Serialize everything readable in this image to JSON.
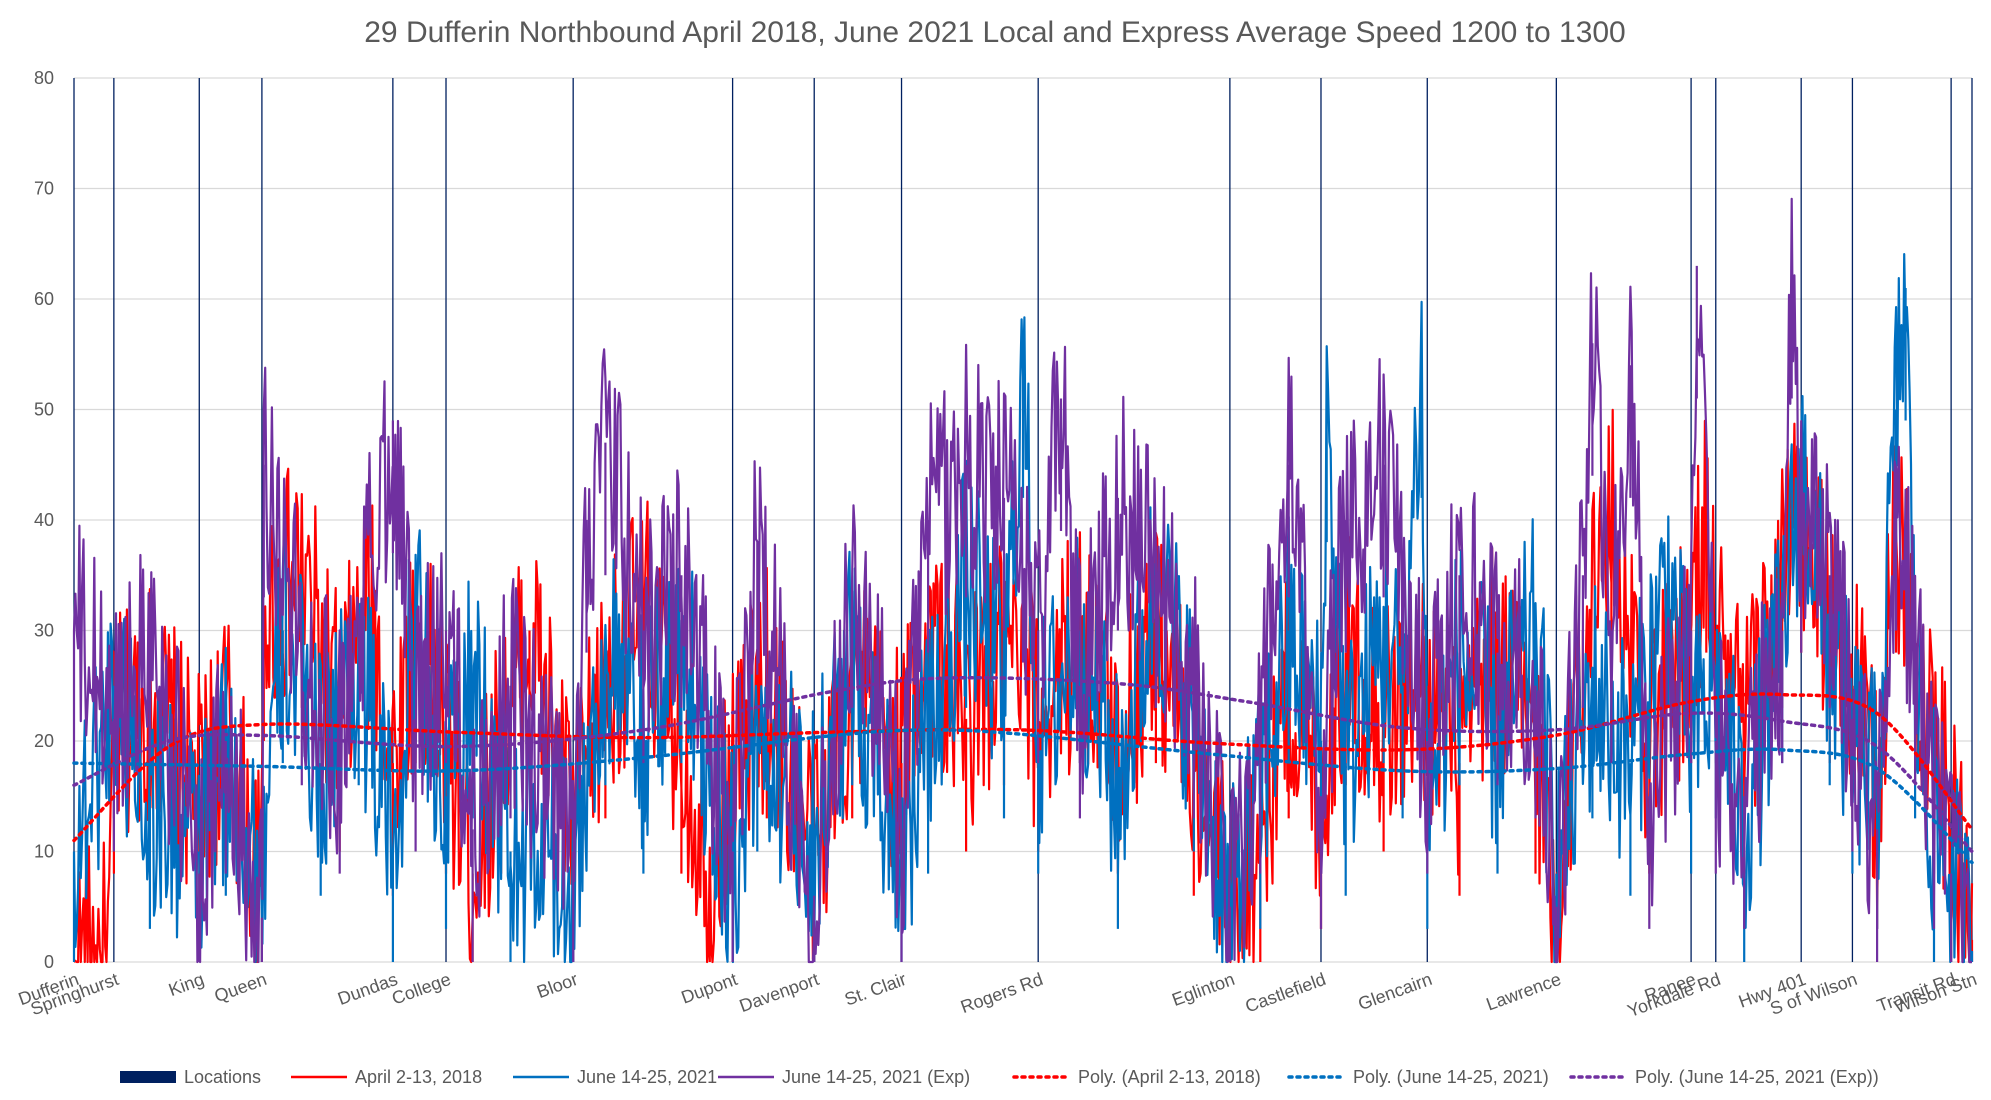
{
  "chart_data": {
    "type": "line",
    "title": "29 Dufferin Northbound April 2018, June 2021 Local and Express Average Speed 1200 to 1300",
    "xlabel": "",
    "ylabel": "",
    "ylim": [
      0,
      80
    ],
    "yticks": [
      "0",
      "10",
      "20",
      "30",
      "40",
      "50",
      "60",
      "70",
      "80"
    ],
    "grid": true,
    "legend_position": "bottom",
    "locations": [
      {
        "name": "Dufferin",
        "pos": 0.0
      },
      {
        "name": "Springhurst",
        "pos": 0.021
      },
      {
        "name": "King",
        "pos": 0.066
      },
      {
        "name": "Queen",
        "pos": 0.099
      },
      {
        "name": "Dundas",
        "pos": 0.168
      },
      {
        "name": "College",
        "pos": 0.196
      },
      {
        "name": "Bloor",
        "pos": 0.263
      },
      {
        "name": "Dupont",
        "pos": 0.347
      },
      {
        "name": "Davenport",
        "pos": 0.39
      },
      {
        "name": "St. Clair",
        "pos": 0.436
      },
      {
        "name": "Rogers Rd",
        "pos": 0.508
      },
      {
        "name": "Eglinton",
        "pos": 0.609
      },
      {
        "name": "Castlefield",
        "pos": 0.657
      },
      {
        "name": "Glencairn",
        "pos": 0.713
      },
      {
        "name": "Lawrence",
        "pos": 0.781
      },
      {
        "name": "Ranee",
        "pos": 0.852
      },
      {
        "name": "Yorkdale Rd",
        "pos": 0.865
      },
      {
        "name": "Hwy 401",
        "pos": 0.91
      },
      {
        "name": "S of Wilson",
        "pos": 0.937
      },
      {
        "name": "Transit Rd",
        "pos": 0.989
      },
      {
        "name": "Wilson Stn",
        "pos": 1.0
      }
    ],
    "series": [
      {
        "name": "April 2-13, 2018",
        "color": "#ff0000",
        "points": [
          [
            0,
            0
          ],
          [
            0.018,
            0
          ],
          [
            0.021,
            20
          ],
          [
            0.04,
            24
          ],
          [
            0.066,
            15
          ],
          [
            0.08,
            22
          ],
          [
            0.099,
            5
          ],
          [
            0.1,
            32
          ],
          [
            0.12,
            35
          ],
          [
            0.14,
            22
          ],
          [
            0.155,
            33
          ],
          [
            0.168,
            18
          ],
          [
            0.18,
            30
          ],
          [
            0.196,
            20
          ],
          [
            0.21,
            8
          ],
          [
            0.225,
            20
          ],
          [
            0.24,
            30
          ],
          [
            0.263,
            12
          ],
          [
            0.28,
            25
          ],
          [
            0.3,
            32
          ],
          [
            0.32,
            20
          ],
          [
            0.335,
            8
          ],
          [
            0.347,
            18
          ],
          [
            0.365,
            25
          ],
          [
            0.39,
            10
          ],
          [
            0.41,
            25
          ],
          [
            0.436,
            18
          ],
          [
            0.45,
            30
          ],
          [
            0.47,
            22
          ],
          [
            0.49,
            28
          ],
          [
            0.508,
            22
          ],
          [
            0.53,
            30
          ],
          [
            0.55,
            20
          ],
          [
            0.57,
            30
          ],
          [
            0.59,
            18
          ],
          [
            0.609,
            5
          ],
          [
            0.625,
            12
          ],
          [
            0.64,
            25
          ],
          [
            0.657,
            15
          ],
          [
            0.67,
            28
          ],
          [
            0.69,
            22
          ],
          [
            0.713,
            25
          ],
          [
            0.73,
            18
          ],
          [
            0.75,
            28
          ],
          [
            0.77,
            20
          ],
          [
            0.781,
            5
          ],
          [
            0.795,
            30
          ],
          [
            0.81,
            40
          ],
          [
            0.83,
            20
          ],
          [
            0.852,
            30
          ],
          [
            0.86,
            40
          ],
          [
            0.865,
            30
          ],
          [
            0.88,
            20
          ],
          [
            0.9,
            35
          ],
          [
            0.91,
            40
          ],
          [
            0.925,
            30
          ],
          [
            0.937,
            25
          ],
          [
            0.95,
            15
          ],
          [
            0.96,
            40
          ],
          [
            0.97,
            30
          ],
          [
            0.98,
            20
          ],
          [
            0.989,
            12
          ],
          [
            1.0,
            2
          ]
        ]
      },
      {
        "name": "June 14-25, 2021",
        "color": "#0070c0",
        "points": [
          [
            0,
            10
          ],
          [
            0.021,
            25
          ],
          [
            0.04,
            15
          ],
          [
            0.066,
            10
          ],
          [
            0.08,
            18
          ],
          [
            0.099,
            8
          ],
          [
            0.11,
            30
          ],
          [
            0.13,
            18
          ],
          [
            0.15,
            28
          ],
          [
            0.168,
            10
          ],
          [
            0.18,
            32
          ],
          [
            0.196,
            15
          ],
          [
            0.21,
            25
          ],
          [
            0.23,
            10
          ],
          [
            0.263,
            8
          ],
          [
            0.28,
            28
          ],
          [
            0.3,
            20
          ],
          [
            0.32,
            30
          ],
          [
            0.347,
            8
          ],
          [
            0.36,
            22
          ],
          [
            0.39,
            12
          ],
          [
            0.41,
            28
          ],
          [
            0.436,
            10
          ],
          [
            0.45,
            20
          ],
          [
            0.47,
            35
          ],
          [
            0.49,
            25
          ],
          [
            0.5,
            54
          ],
          [
            0.508,
            20
          ],
          [
            0.53,
            30
          ],
          [
            0.55,
            15
          ],
          [
            0.57,
            35
          ],
          [
            0.59,
            22
          ],
          [
            0.609,
            4
          ],
          [
            0.625,
            15
          ],
          [
            0.64,
            30
          ],
          [
            0.657,
            20
          ],
          [
            0.66,
            50
          ],
          [
            0.67,
            18
          ],
          [
            0.69,
            30
          ],
          [
            0.7,
            25
          ],
          [
            0.71,
            54
          ],
          [
            0.713,
            15
          ],
          [
            0.73,
            28
          ],
          [
            0.75,
            20
          ],
          [
            0.77,
            30
          ],
          [
            0.781,
            8
          ],
          [
            0.8,
            25
          ],
          [
            0.82,
            18
          ],
          [
            0.84,
            35
          ],
          [
            0.852,
            20
          ],
          [
            0.865,
            25
          ],
          [
            0.88,
            12
          ],
          [
            0.9,
            30
          ],
          [
            0.91,
            45
          ],
          [
            0.925,
            28
          ],
          [
            0.937,
            20
          ],
          [
            0.95,
            15
          ],
          [
            0.96,
            50
          ],
          [
            0.965,
            61
          ],
          [
            0.97,
            25
          ],
          [
            0.98,
            12
          ],
          [
            0.989,
            8
          ],
          [
            1.0,
            1
          ]
        ]
      },
      {
        "name": "June 14-25, 2021 (Exp)",
        "color": "#7030a0",
        "points": [
          [
            0,
            30
          ],
          [
            0.021,
            22
          ],
          [
            0.04,
            30
          ],
          [
            0.066,
            8
          ],
          [
            0.08,
            20
          ],
          [
            0.099,
            4
          ],
          [
            0.1,
            45
          ],
          [
            0.12,
            28
          ],
          [
            0.14,
            20
          ],
          [
            0.168,
            49
          ],
          [
            0.18,
            22
          ],
          [
            0.196,
            30
          ],
          [
            0.21,
            12
          ],
          [
            0.23,
            25
          ],
          [
            0.263,
            10
          ],
          [
            0.27,
            40
          ],
          [
            0.28,
            47
          ],
          [
            0.3,
            30
          ],
          [
            0.32,
            35
          ],
          [
            0.347,
            10
          ],
          [
            0.36,
            38
          ],
          [
            0.39,
            6
          ],
          [
            0.41,
            35
          ],
          [
            0.436,
            12
          ],
          [
            0.45,
            40
          ],
          [
            0.47,
            45
          ],
          [
            0.49,
            42
          ],
          [
            0.508,
            30
          ],
          [
            0.52,
            51
          ],
          [
            0.53,
            25
          ],
          [
            0.55,
            42
          ],
          [
            0.57,
            35
          ],
          [
            0.59,
            25
          ],
          [
            0.609,
            5
          ],
          [
            0.625,
            20
          ],
          [
            0.64,
            45
          ],
          [
            0.657,
            15
          ],
          [
            0.67,
            40
          ],
          [
            0.69,
            45
          ],
          [
            0.713,
            20
          ],
          [
            0.73,
            35
          ],
          [
            0.75,
            28
          ],
          [
            0.77,
            25
          ],
          [
            0.781,
            5
          ],
          [
            0.795,
            35
          ],
          [
            0.8,
            56
          ],
          [
            0.81,
            30
          ],
          [
            0.82,
            54
          ],
          [
            0.83,
            15
          ],
          [
            0.852,
            30
          ],
          [
            0.855,
            63
          ],
          [
            0.865,
            20
          ],
          [
            0.88,
            15
          ],
          [
            0.9,
            30
          ],
          [
            0.905,
            63
          ],
          [
            0.91,
            40
          ],
          [
            0.925,
            35
          ],
          [
            0.937,
            22
          ],
          [
            0.95,
            12
          ],
          [
            0.96,
            42
          ],
          [
            0.97,
            28
          ],
          [
            0.98,
            15
          ],
          [
            0.989,
            8
          ],
          [
            1.0,
            0
          ]
        ]
      }
    ],
    "trendlines": [
      {
        "name": "Poly. (April 2-13, 2018)",
        "color": "#ff0000",
        "points": [
          [
            0,
            11
          ],
          [
            0.05,
            19.5
          ],
          [
            0.1,
            21.5
          ],
          [
            0.2,
            20.8
          ],
          [
            0.3,
            20.3
          ],
          [
            0.4,
            20.8
          ],
          [
            0.5,
            21
          ],
          [
            0.6,
            19.8
          ],
          [
            0.7,
            19.2
          ],
          [
            0.78,
            20.5
          ],
          [
            0.85,
            23.5
          ],
          [
            0.9,
            24.2
          ],
          [
            0.95,
            22.5
          ],
          [
            1.0,
            12
          ]
        ]
      },
      {
        "name": "Poly. (June 14-25, 2021)",
        "color": "#0070c0",
        "points": [
          [
            0,
            18
          ],
          [
            0.1,
            17.7
          ],
          [
            0.2,
            17.3
          ],
          [
            0.3,
            18.5
          ],
          [
            0.4,
            20.5
          ],
          [
            0.45,
            21
          ],
          [
            0.5,
            20.6
          ],
          [
            0.6,
            18.8
          ],
          [
            0.7,
            17.3
          ],
          [
            0.78,
            17.5
          ],
          [
            0.85,
            18.8
          ],
          [
            0.9,
            19.2
          ],
          [
            0.95,
            17.5
          ],
          [
            1.0,
            9
          ]
        ]
      },
      {
        "name": "Poly. (June 14-25, 2021 (Exp))",
        "color": "#7030a0",
        "points": [
          [
            0,
            16
          ],
          [
            0.05,
            20
          ],
          [
            0.1,
            20.5
          ],
          [
            0.2,
            19.5
          ],
          [
            0.3,
            21
          ],
          [
            0.4,
            24.5
          ],
          [
            0.46,
            25.7
          ],
          [
            0.55,
            25.2
          ],
          [
            0.62,
            23.5
          ],
          [
            0.7,
            21.2
          ],
          [
            0.78,
            21
          ],
          [
            0.85,
            22.5
          ],
          [
            0.9,
            21.8
          ],
          [
            0.95,
            19.5
          ],
          [
            1.0,
            10
          ]
        ]
      }
    ],
    "legend": [
      {
        "label": "Locations",
        "style": "bar",
        "color": "#002060"
      },
      {
        "label": "April 2-13, 2018",
        "style": "line",
        "color": "#ff0000"
      },
      {
        "label": "June 14-25, 2021",
        "style": "line",
        "color": "#0070c0"
      },
      {
        "label": "June 14-25, 2021 (Exp)",
        "style": "line",
        "color": "#7030a0"
      },
      {
        "label": "Poly. (April 2-13, 2018)",
        "style": "dotted",
        "color": "#ff0000"
      },
      {
        "label": "Poly. (June 14-25, 2021)",
        "style": "dotted",
        "color": "#0070c0"
      },
      {
        "label": "Poly. (June 14-25, 2021 (Exp))",
        "style": "dotted",
        "color": "#7030a0"
      }
    ]
  }
}
